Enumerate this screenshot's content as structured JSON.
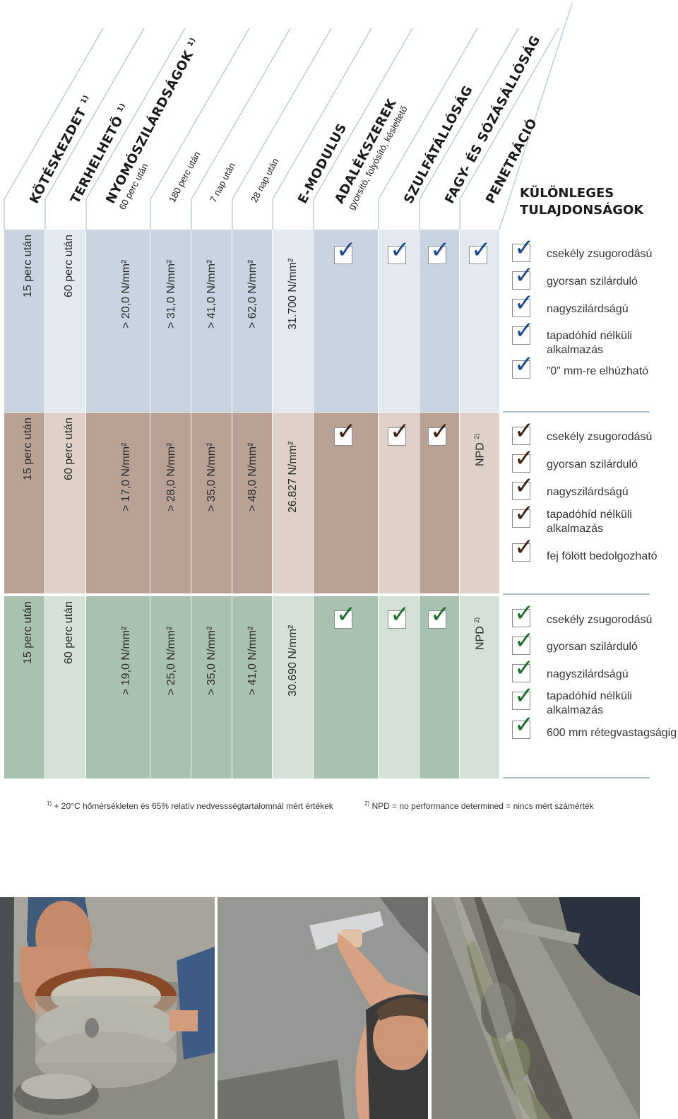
{
  "header": {
    "columns": [
      {
        "label": "KÖTÉSKEZDET",
        "note": "1)",
        "sub": ""
      },
      {
        "label": "TERHELHETŐ",
        "note": "1)",
        "sub": ""
      },
      {
        "label": "NYOMÓSZILÁRDSÁGOK",
        "note": "1)",
        "sub": "60 perc után"
      },
      {
        "label": "",
        "note": "",
        "sub": "180 perc után"
      },
      {
        "label": "",
        "note": "",
        "sub": "7 nap után"
      },
      {
        "label": "",
        "note": "",
        "sub": "28 nap után"
      },
      {
        "label": "E-MODULUS",
        "note": "",
        "sub": ""
      },
      {
        "label": "ADALÉKSZEREK",
        "note": "",
        "sub": "gyorsító, folyósító, késleltető"
      },
      {
        "label": "SZULFÁTÁLLÓSÁG",
        "note": "",
        "sub": ""
      },
      {
        "label": "FAGY- ÉS SÓZÁSÁLLÓSÁG",
        "note": "",
        "sub": ""
      },
      {
        "label": "PENETRÁCIÓ",
        "note": "",
        "sub": ""
      }
    ],
    "special_line1": "KÜLÖNLEGES",
    "special_line2": "TULAJDONSÁGOK"
  },
  "colors": {
    "blue_dark": "#c9d3e1",
    "blue_light": "#e4e8f1",
    "blue_check": "#1f4a8c",
    "blue_line": "#a6bfd2",
    "brown_dark": "#b9a196",
    "brown_light": "#dfd0c9",
    "brown_check": "#3b2417",
    "green_dark": "#a9c1b0",
    "green_light": "#d5e0d8",
    "green_check": "#1f6e2d"
  },
  "rows": [
    {
      "values": [
        "15 perc után",
        "60 perc után",
        "> 20,0 N/mm²",
        "> 31,0 N/mm²",
        "> 41,0 N/mm²",
        "> 62,0 N/mm²",
        "31.700 N/mm²"
      ],
      "checks": [
        true,
        true,
        true,
        true
      ],
      "penetration": "",
      "features": [
        "csekély zsugorodású",
        "gyorsan szilárduló",
        "nagyszilárdságú",
        "tapadóhíd nélküli alkalmazás",
        "”0” mm-re elhúzható"
      ]
    },
    {
      "values": [
        "15 perc után",
        "60 perc után",
        "> 17,0 N/mm²",
        "> 28,0 N/mm²",
        "> 35,0 N/mm²",
        "> 48,0 N/mm²",
        "26.827 N/mm²"
      ],
      "checks": [
        true,
        true,
        true,
        false
      ],
      "penetration": "NPD",
      "penetration_note": "2)",
      "features": [
        "csekély zsugorodású",
        "gyorsan szilárduló",
        "nagyszilárdságú",
        "tapadóhíd nélküli alkalmazás",
        "fej fölött bedolgozható"
      ]
    },
    {
      "values": [
        "15 perc után",
        "60 perc után",
        "> 19,0 N/mm²",
        "> 25,0 N/mm²",
        "> 35,0 N/mm²",
        "> 41,0 N/mm²",
        "30.690 N/mm²"
      ],
      "checks": [
        true,
        true,
        true,
        false
      ],
      "penetration": "NPD",
      "penetration_note": "2)",
      "features": [
        "csekély zsugorodású",
        "gyorsan szilárduló",
        "nagyszilárdságú",
        "tapadóhíd nélküli alkalmazás",
        "600 mm rétegvastagságig"
      ]
    }
  ],
  "footnotes": {
    "n1_mark": "1)",
    "n1": "+ 20°C hőmérsékleten és 65% relatív nedvessségtartalomnál mért értékek",
    "n2_mark": "2)",
    "n2": "NPD = no performance determined = nincs mért számérték"
  },
  "check_glyph": "✓"
}
